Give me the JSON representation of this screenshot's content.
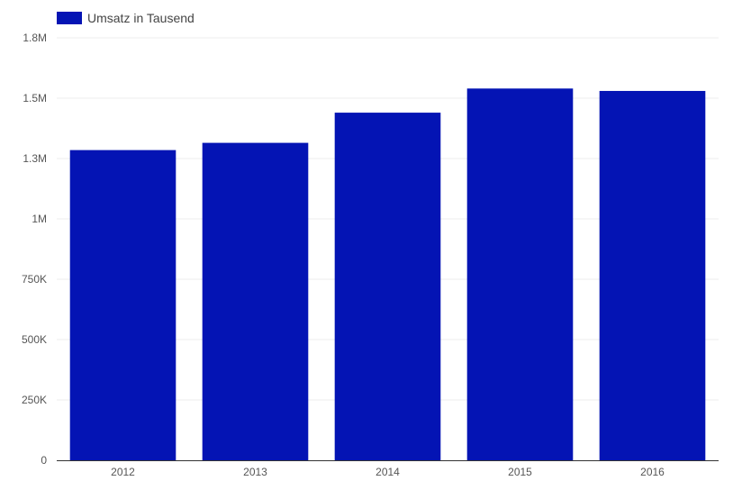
{
  "chart_data": {
    "type": "bar",
    "legend": {
      "label": "Umsatz in Tausend",
      "position": "top-left"
    },
    "colors": {
      "bar": "#0414b4",
      "grid": "#ececec",
      "axis": "#333333"
    },
    "categories": [
      "2012",
      "2013",
      "2014",
      "2015",
      "2016"
    ],
    "series": [
      {
        "name": "Umsatz in Tausend",
        "values": [
          1285000,
          1315000,
          1440000,
          1540000,
          1530000
        ]
      }
    ],
    "ylim": [
      0,
      1750000
    ],
    "yticks": [
      {
        "value": 0,
        "label": "0"
      },
      {
        "value": 250000,
        "label": "250K"
      },
      {
        "value": 500000,
        "label": "500K"
      },
      {
        "value": 750000,
        "label": "750K"
      },
      {
        "value": 1000000,
        "label": "1M"
      },
      {
        "value": 1250000,
        "label": "1.3M"
      },
      {
        "value": 1500000,
        "label": "1.5M"
      },
      {
        "value": 1750000,
        "label": "1.8M"
      }
    ],
    "grid": true,
    "xlabel": "",
    "ylabel": ""
  }
}
